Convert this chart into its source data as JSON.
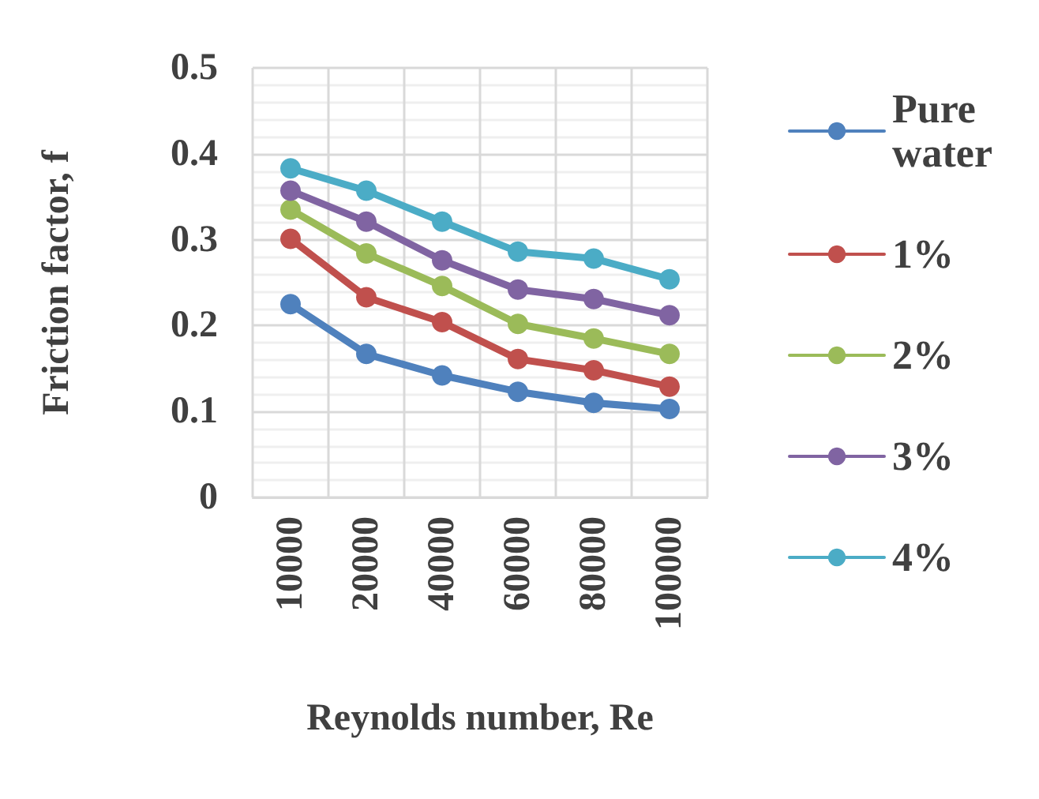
{
  "chart_data": {
    "type": "line",
    "xlabel": "Reynolds number, Re",
    "ylabel": "Friction factor, f",
    "categories": [
      "10000",
      "20000",
      "40000",
      "60000",
      "80000",
      "100000"
    ],
    "series": [
      {
        "name": "Pure water",
        "color": "#4f81bd",
        "values": [
          0.225,
          0.167,
          0.142,
          0.123,
          0.11,
          0.103
        ]
      },
      {
        "name": "1%",
        "color": "#c0504d",
        "values": [
          0.301,
          0.233,
          0.204,
          0.161,
          0.148,
          0.129
        ]
      },
      {
        "name": "2%",
        "color": "#9bbb59",
        "values": [
          0.335,
          0.284,
          0.246,
          0.202,
          0.185,
          0.167
        ]
      },
      {
        "name": "3%",
        "color": "#8064a2",
        "values": [
          0.357,
          0.321,
          0.276,
          0.242,
          0.231,
          0.212
        ]
      },
      {
        "name": "4%",
        "color": "#4bacc6",
        "values": [
          0.383,
          0.357,
          0.321,
          0.286,
          0.278,
          0.254
        ]
      }
    ],
    "ylim": [
      0,
      0.5
    ],
    "yticks": [
      0,
      0.1,
      0.2,
      0.3,
      0.4,
      0.5
    ],
    "grid": true,
    "legend": "right",
    "marker": "circle",
    "line_style": "solid"
  }
}
